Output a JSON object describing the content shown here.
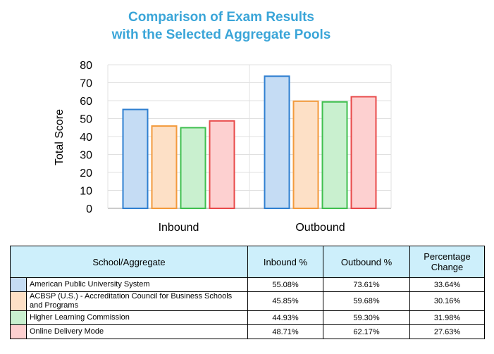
{
  "chart_data": {
    "type": "bar",
    "title_line1": "Comparison of Exam Results",
    "title_line2": "with the Selected Aggregate Pools",
    "ylabel": "Total Score",
    "xlabel": "",
    "ylim": [
      0,
      80
    ],
    "yticks": [
      0,
      10,
      20,
      30,
      40,
      50,
      60,
      70,
      80
    ],
    "categories": [
      "Inbound",
      "Outbound"
    ],
    "grid": true,
    "series": [
      {
        "name": "American Public University System",
        "values": [
          55.08,
          73.61
        ],
        "fill": "#c5dcf4",
        "stroke": "#2f7fd0"
      },
      {
        "name": "ACBSP (U.S.) - Accreditation Council for Business Schools and Programs",
        "values": [
          45.85,
          59.68
        ],
        "fill": "#fde0c6",
        "stroke": "#f39a3c"
      },
      {
        "name": "Higher Learning Commission",
        "values": [
          44.93,
          59.3
        ],
        "fill": "#c9f0cf",
        "stroke": "#3fbf4f"
      },
      {
        "name": "Online Delivery Mode",
        "values": [
          48.71,
          62.17
        ],
        "fill": "#fdd0d0",
        "stroke": "#e84a4a"
      }
    ]
  },
  "table": {
    "headers": {
      "school": "School/Aggregate",
      "inbound": "Inbound %",
      "outbound": "Outbound %",
      "change": "Percentage Change"
    },
    "rows": [
      {
        "name": "American Public University System",
        "inbound": "55.08%",
        "outbound": "73.61%",
        "change": "33.64%",
        "color": "#c5dcf4"
      },
      {
        "name": "ACBSP (U.S.) - Accreditation Council for Business Schools and Programs",
        "inbound": "45.85%",
        "outbound": "59.68%",
        "change": "30.16%",
        "color": "#fde0c6"
      },
      {
        "name": "Higher Learning Commission",
        "inbound": "44.93%",
        "outbound": "59.30%",
        "change": "31.98%",
        "color": "#c9f0cf"
      },
      {
        "name": "Online Delivery Mode",
        "inbound": "48.71%",
        "outbound": "62.17%",
        "change": "27.63%",
        "color": "#fdd0d0"
      }
    ]
  }
}
